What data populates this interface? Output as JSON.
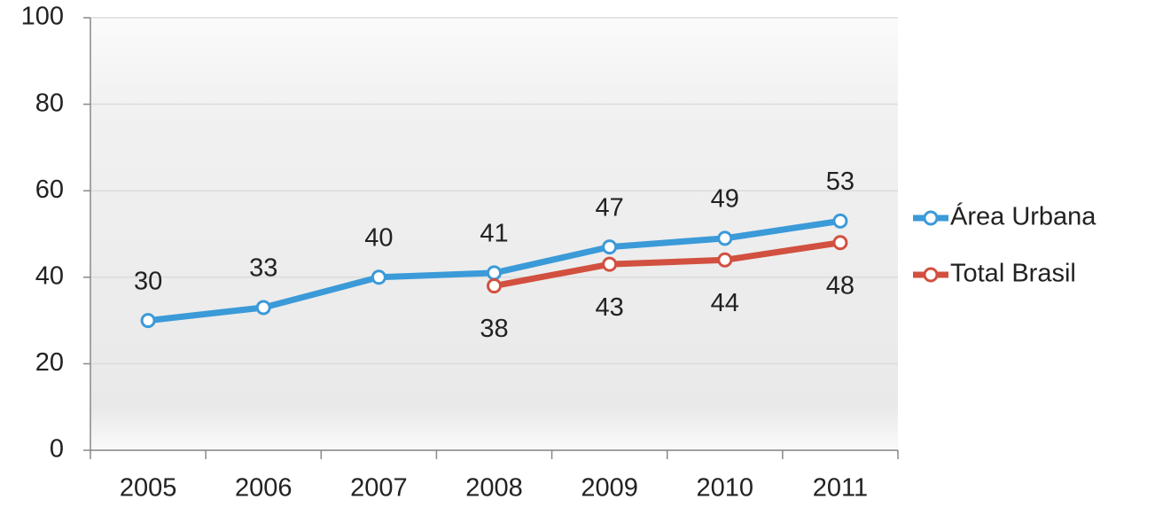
{
  "chart_data": {
    "type": "line",
    "categories": [
      "2005",
      "2006",
      "2007",
      "2008",
      "2009",
      "2010",
      "2011"
    ],
    "series": [
      {
        "name": "Área Urbana",
        "color": "#3b9ad8",
        "values": [
          30,
          33,
          40,
          41,
          47,
          49,
          53
        ]
      },
      {
        "name": "Total Brasil",
        "color": "#d2503f",
        "values": [
          null,
          null,
          null,
          38,
          43,
          44,
          48
        ]
      }
    ],
    "ylim": [
      0,
      100
    ],
    "yticks": [
      0,
      20,
      40,
      60,
      80,
      100
    ],
    "grid": true,
    "legend": "right"
  }
}
